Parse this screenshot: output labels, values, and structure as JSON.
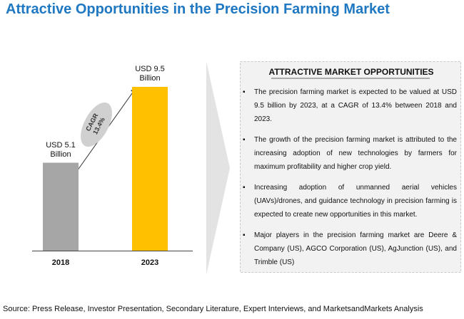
{
  "chart_data": {
    "type": "bar",
    "title": "Attractive Opportunities in the Precision Farming Market",
    "categories": [
      "2018",
      "2023"
    ],
    "values": [
      5.1,
      9.5
    ],
    "value_labels": [
      "USD 5.1 Billion",
      "USD 9.5 Billion"
    ],
    "colors": [
      "#a6a6a6",
      "#ffc000"
    ],
    "annotation": {
      "label": "CAGR",
      "value": "13.4%"
    }
  },
  "panel": {
    "heading": "ATTRACTIVE MARKET OPPORTUNITIES",
    "bullets": [
      "The precision farming market is expected to be valued at USD 9.5 billion by 2023, at a CAGR of 13.4% between 2018 and 2023.",
      "The growth of the precision farming market is attributed to the increasing adoption of new technologies by farmers for maximum profitability and higher crop yield.",
      "Increasing adoption of unmanned aerial vehicles (UAVs)/drones, and guidance technology in precision farming is expected to create new opportunities in this market.",
      "Major players in the precision farming market are Deere & Company (US), AGCO Corporation (US), AgJunction (US), and Trimble (US)"
    ]
  },
  "source": "Source: Press Release, Investor Presentation, Secondary Literature, Expert Interviews, and MarketsandMarkets Analysis"
}
